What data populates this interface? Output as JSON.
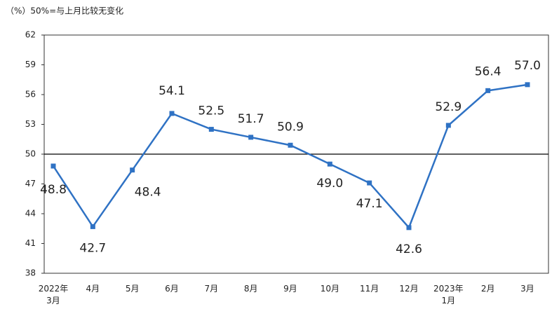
{
  "chart_data": {
    "type": "line",
    "subtitle": "（%）50%=与上月比较无变化",
    "categories": [
      "2022年\n3月",
      "4月",
      "5月",
      "6月",
      "7月",
      "8月",
      "9月",
      "10月",
      "11月",
      "12月",
      "2023年\n1月",
      "2月",
      "3月"
    ],
    "values": [
      48.8,
      42.7,
      48.4,
      54.1,
      52.5,
      51.7,
      50.9,
      49.0,
      47.1,
      42.6,
      52.9,
      56.4,
      57.0
    ],
    "value_labels": [
      "48.8",
      "42.7",
      "48.4",
      "54.1",
      "52.5",
      "51.7",
      "50.9",
      "49.0",
      "47.1",
      "42.6",
      "52.9",
      "56.4",
      "57.0"
    ],
    "color": "#2f72c4",
    "reference_line": 50,
    "ylim": [
      38,
      62
    ],
    "yticks": [
      38,
      41,
      44,
      47,
      50,
      53,
      56,
      59,
      62
    ]
  }
}
